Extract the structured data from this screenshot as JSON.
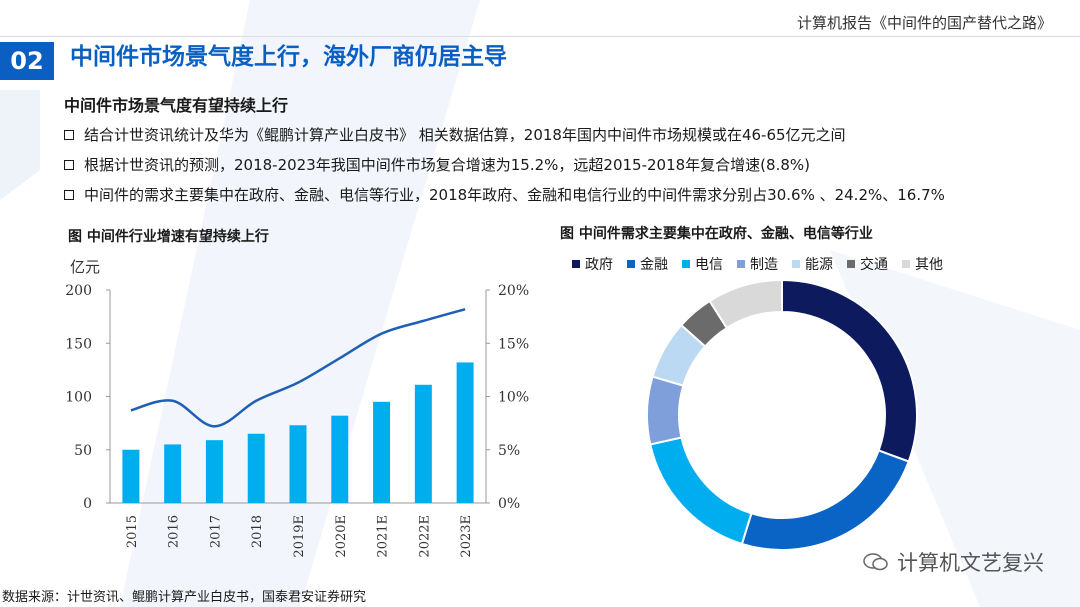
{
  "header": {
    "report_title": "计算机报告《中间件的国产替代之路》",
    "section_number": "02",
    "page_title": "中间件市场景气度上行，海外厂商仍居主导"
  },
  "subtitle": "中间件市场景气度有望持续上行",
  "bullets": [
    "结合计世资讯统计及华为《鲲鹏计算产业白皮书》 相关数据估算，2018年国内中间件市场规模或在46-65亿元之间",
    "根据计世资讯的预测，2018-2023年我国中间件市场复合增速为15.2%，远超2015-2018年复合增速(8.8%)",
    "中间件的需求主要集中在政府、金融、电信等行业，2018年政府、金融和电信行业的中间件需求分别占30.6% 、24.2%、16.7%"
  ],
  "chart_data": [
    {
      "type": "bar",
      "title": "图 中间件行业增速有望持续上行",
      "ylabel": "亿元",
      "categories": [
        "2015",
        "2016",
        "2017",
        "2018",
        "2019E",
        "2020E",
        "2021E",
        "2022E",
        "2023E"
      ],
      "series": [
        {
          "values": [
            50,
            55,
            59,
            65,
            73,
            82,
            95,
            111,
            132
          ],
          "type": "bar",
          "axis": "left",
          "color": "#00aeef"
        },
        {
          "values": [
            8.7,
            9.6,
            7.2,
            9.6,
            11.3,
            13.6,
            15.9,
            17.1,
            18.2
          ],
          "type": "line",
          "axis": "right",
          "unit": "%",
          "color": "#1f5fb4"
        }
      ],
      "ylim": [
        0,
        200
      ],
      "yticks": [
        "0",
        "50",
        "100",
        "150",
        "200"
      ],
      "y2lim": [
        0,
        20
      ],
      "y2ticks": [
        "0%",
        "5%",
        "10%",
        "15%",
        "20%"
      ],
      "grid": false
    },
    {
      "type": "pie",
      "title": "图 中间件需求主要集中在政府、金融、电信等行业",
      "donut": true,
      "legend_position": "top",
      "categories": [
        "政府",
        "金融",
        "电信",
        "制造",
        "能源",
        "交通",
        "其他"
      ],
      "values": [
        30.6,
        24.2,
        16.7,
        8.1,
        7.0,
        4.4,
        9.0
      ],
      "colors": [
        "#0d1b5e",
        "#0a64c6",
        "#00aeef",
        "#7e9fd9",
        "#bcd9f3",
        "#6b6b6b",
        "#d9d9d9"
      ]
    }
  ],
  "source": "数据来源：计世资讯、鲲鹏计算产业白皮书，国泰君安证券研究",
  "watermark": "计算机文艺复兴"
}
